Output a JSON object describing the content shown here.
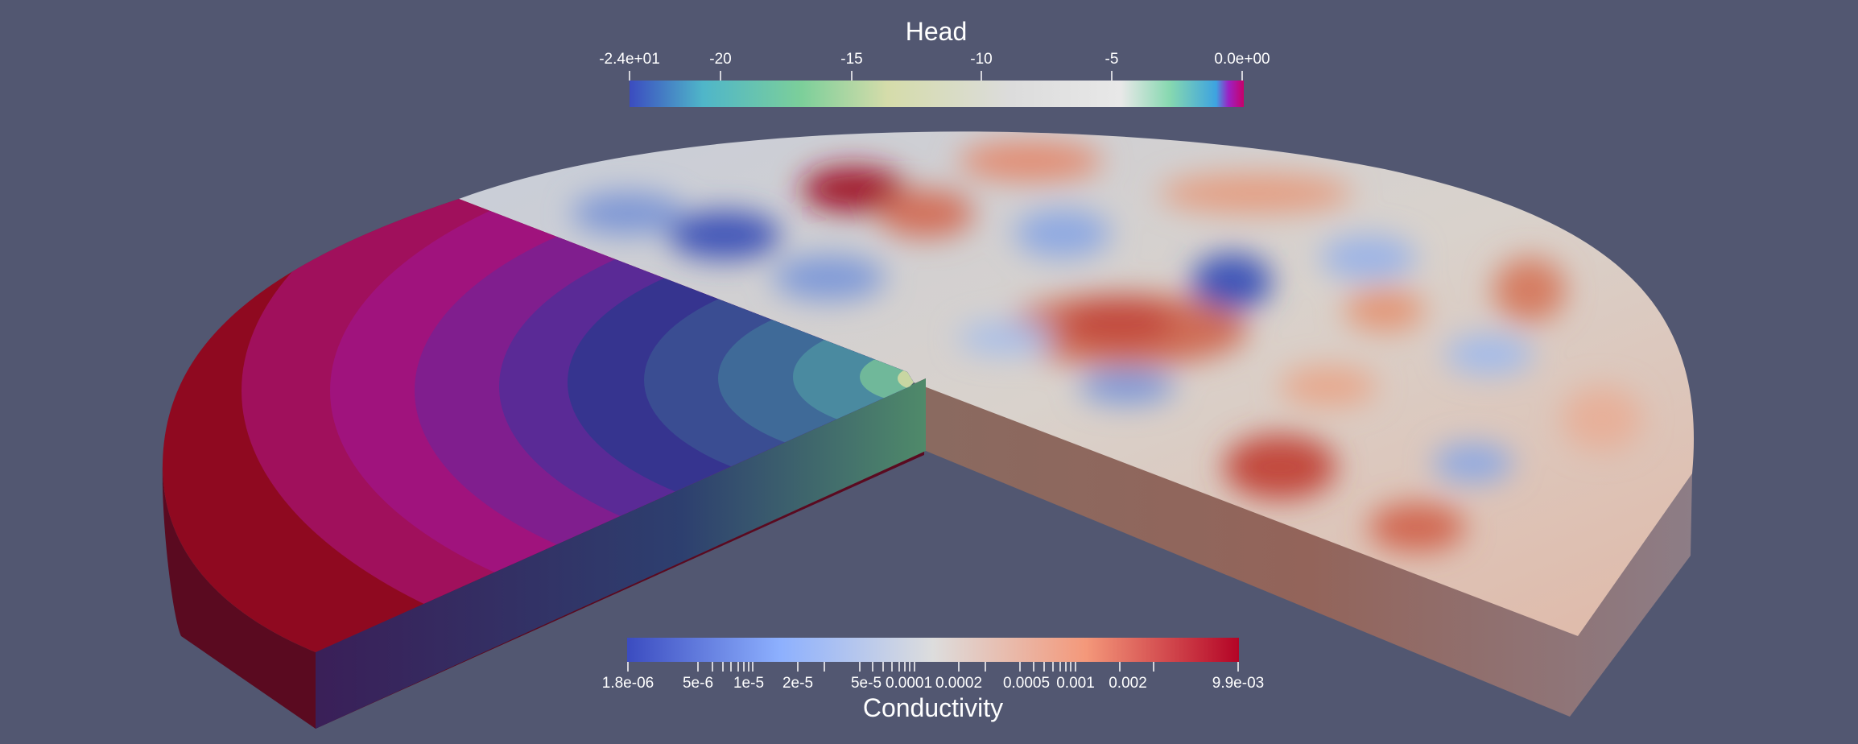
{
  "viewer": {
    "background": "#525771"
  },
  "head_bar": {
    "title": "Head",
    "tick_labels": [
      "-2.4e+01",
      "-20",
      "-15",
      "-10",
      "-5",
      "0.0e+00"
    ],
    "range": [
      -24,
      0
    ],
    "colors": [
      "#3b4cc0",
      "#4fb6c9",
      "#7ccf9a",
      "#d5dcaa",
      "#dcdcdc",
      "#e8e8e8",
      "#86d8b0",
      "#3da3e0",
      "#9b22c5",
      "#c8006a"
    ]
  },
  "conductivity_bar": {
    "title": "Conductivity",
    "tick_labels": [
      "1.8e-06",
      "5e-6",
      "1e-5",
      "2e-5",
      "5e-5",
      "0.0001",
      "0.0002",
      "0.0005",
      "0.001",
      "0.002",
      "9.9e-03"
    ],
    "range": [
      1.8e-06,
      0.0099
    ],
    "scale": "log",
    "colors": [
      "#3b4cc0",
      "#8db0fe",
      "#dddddd",
      "#f4987a",
      "#b40426"
    ]
  }
}
